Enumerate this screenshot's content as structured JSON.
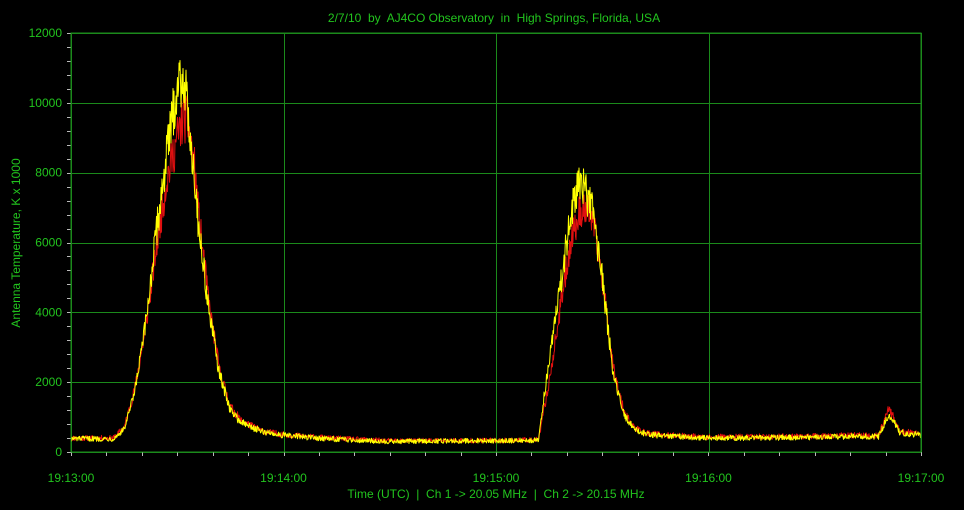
{
  "chart_data": {
    "type": "line",
    "title": "2/7/10  by  AJ4CO Observatory  in  High Springs, Florida, USA",
    "xlabel": "Time (UTC)  |  Ch 1 -> 20.05 MHz  |  Ch 2 -> 20.15 MHz",
    "ylabel": "Antenna Temperature, K x 1000",
    "x_unit": "minutes after 19:13:00 UTC",
    "xlim": [
      0,
      4
    ],
    "ylim": [
      0,
      12000
    ],
    "x_ticks": [
      {
        "value": 0,
        "label": "19:13:00"
      },
      {
        "value": 1,
        "label": "19:14:00"
      },
      {
        "value": 2,
        "label": "19:15:00"
      },
      {
        "value": 3,
        "label": "19:16:00"
      },
      {
        "value": 4,
        "label": "19:17:00"
      }
    ],
    "y_ticks": [
      0,
      2000,
      4000,
      6000,
      8000,
      10000,
      12000
    ],
    "grid": true,
    "colors": {
      "background": "#000000",
      "grid": "#1b8a1b",
      "text": "#22c41e",
      "ch1": "#e01010",
      "ch2": "#ffff00"
    },
    "series": [
      {
        "name": "Ch 1",
        "color": "#e01010",
        "x": [
          0,
          0.2,
          0.25,
          0.3,
          0.35,
          0.4,
          0.45,
          0.5,
          0.53,
          0.55,
          0.58,
          0.6,
          0.65,
          0.7,
          0.75,
          0.8,
          0.9,
          1.0,
          1.2,
          1.5,
          1.8,
          2.0,
          2.2,
          2.25,
          2.3,
          2.35,
          2.4,
          2.45,
          2.5,
          2.55,
          2.6,
          2.65,
          2.7,
          2.8,
          3.0,
          3.5,
          3.7,
          3.8,
          3.85,
          3.9,
          4.0
        ],
        "y": [
          400,
          400,
          700,
          1800,
          3500,
          5800,
          7800,
          9000,
          9600,
          9400,
          8200,
          6800,
          4200,
          2300,
          1300,
          900,
          600,
          500,
          400,
          320,
          330,
          330,
          350,
          2000,
          4000,
          6000,
          7000,
          6800,
          5000,
          2500,
          1200,
          700,
          550,
          480,
          430,
          450,
          480,
          470,
          1250,
          600,
          500
        ]
      },
      {
        "name": "Ch 2",
        "color": "#ffff00",
        "x": [
          0,
          0.2,
          0.25,
          0.3,
          0.35,
          0.4,
          0.45,
          0.5,
          0.53,
          0.55,
          0.58,
          0.6,
          0.65,
          0.7,
          0.75,
          0.8,
          0.9,
          1.0,
          1.2,
          1.5,
          1.8,
          2.0,
          2.2,
          2.25,
          2.3,
          2.35,
          2.4,
          2.45,
          2.5,
          2.55,
          2.6,
          2.65,
          2.7,
          2.8,
          3.0,
          3.5,
          3.7,
          3.8,
          3.85,
          3.9,
          4.0
        ],
        "y": [
          380,
          380,
          650,
          1700,
          3600,
          6200,
          8500,
          10500,
          10800,
          9700,
          8000,
          6500,
          4000,
          2200,
          1200,
          850,
          580,
          480,
          380,
          300,
          320,
          320,
          340,
          2700,
          4600,
          6800,
          7800,
          7000,
          5000,
          2300,
          1100,
          650,
          520,
          450,
          400,
          420,
          450,
          440,
          1100,
          560,
          480
        ]
      }
    ]
  }
}
